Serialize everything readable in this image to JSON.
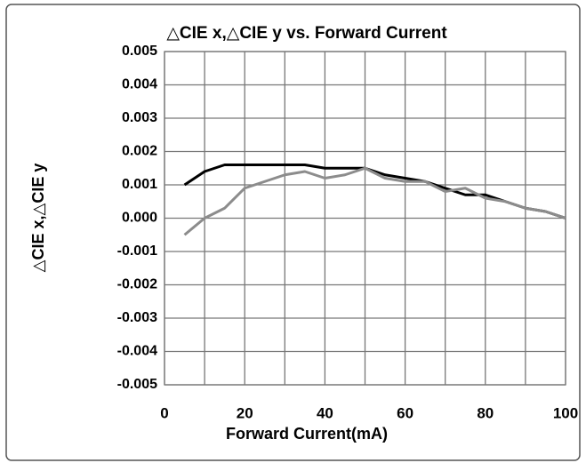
{
  "chart_data": {
    "type": "line",
    "title": "△CIE x,△CIE y vs. Forward Current",
    "x_label": "Forward Current(mA)",
    "y_label": "△CIE x,△CIE y",
    "x": [
      5,
      10,
      15,
      20,
      25,
      30,
      35,
      40,
      45,
      50,
      55,
      60,
      65,
      70,
      75,
      80,
      85,
      90,
      95,
      100
    ],
    "series": [
      {
        "color": "#000000",
        "values": [
          0.001,
          0.0014,
          0.0016,
          0.0016,
          0.0016,
          0.0016,
          0.0016,
          0.0015,
          0.0015,
          0.0015,
          0.0013,
          0.0012,
          0.0011,
          0.0009,
          0.0007,
          0.0007,
          0.0005,
          0.0003,
          0.0002,
          0.0
        ]
      },
      {
        "color": "#8c8c8c",
        "values": [
          -0.0005,
          0.0,
          0.0003,
          0.0009,
          0.0011,
          0.0013,
          0.0014,
          0.0012,
          0.0013,
          0.0015,
          0.0012,
          0.0011,
          0.0011,
          0.0008,
          0.0009,
          0.0006,
          0.0005,
          0.0003,
          0.0002,
          0.0
        ]
      }
    ],
    "xlim": [
      0,
      100
    ],
    "xticks": [
      0,
      20,
      40,
      60,
      80,
      100
    ],
    "xminor": [
      10,
      30,
      50,
      70,
      90
    ],
    "ylim": [
      -0.005,
      0.005
    ],
    "yticks": [
      -0.005,
      -0.004,
      -0.003,
      -0.002,
      -0.001,
      {
        "value": 0,
        "label": "0.000"
      },
      0.001,
      0.002,
      0.003,
      0.004,
      0.005
    ],
    "grid": true
  }
}
